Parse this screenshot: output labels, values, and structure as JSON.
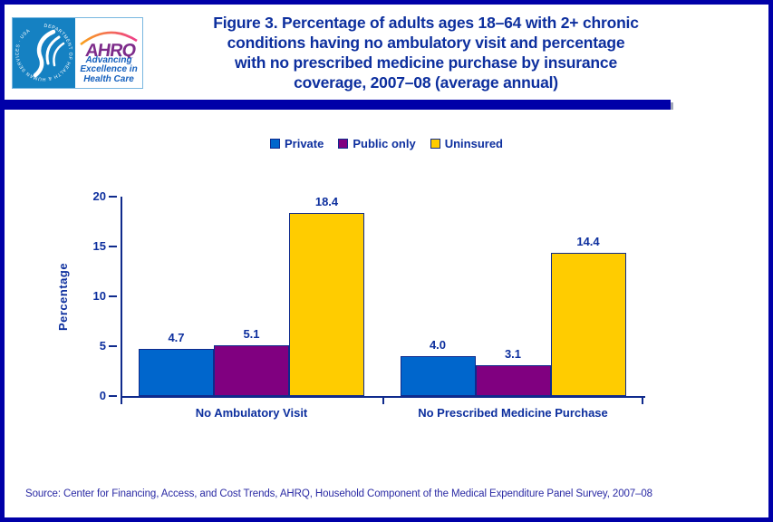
{
  "logo": {
    "seal_text": "DEPARTMENT OF HEALTH & HUMAN SERVICES · USA",
    "acronym": "AHRQ",
    "tagline_lines": [
      "Advancing",
      "Excellence in",
      "Health Care"
    ]
  },
  "title_lines": [
    "Figure 3. Percentage of adults ages 18–64 with 2+ chronic",
    "conditions having no ambulatory visit and percentage",
    "with no prescribed medicine purchase by insurance",
    "coverage, 2007–08 (average annual)"
  ],
  "chart_data": {
    "type": "bar",
    "title": "Figure 3. Percentage of adults ages 18–64 with 2+ chronic conditions having no ambulatory visit and percentage with no prescribed medicine purchase by insurance coverage, 2007–08 (average annual)",
    "categories": [
      "No Ambulatory Visit",
      "No Prescribed Medicine Purchase"
    ],
    "series": [
      {
        "name": "Private",
        "color": "#0066cc",
        "values": [
          4.7,
          4.0
        ]
      },
      {
        "name": "Public only",
        "color": "#800080",
        "values": [
          5.1,
          3.1
        ]
      },
      {
        "name": "Uninsured",
        "color": "#ffcc00",
        "values": [
          18.4,
          14.4
        ]
      }
    ],
    "xlabel": "",
    "ylabel": "Percentage",
    "ylim": [
      0,
      20
    ],
    "yticks": [
      0,
      5,
      10,
      15,
      20
    ],
    "legend_position": "top",
    "grid": false,
    "value_labels": true
  },
  "source": "Source: Center for Financing, Access, and Cost Trends, AHRQ, Household Component of the Medical Expenditure Panel Survey, 2007–08",
  "colors": {
    "frame": "#0000a8",
    "navy_text": "#0d2f9e",
    "axis": "#0f2a8c",
    "private": "#0066cc",
    "public_only": "#800080",
    "uninsured": "#ffcc00"
  }
}
